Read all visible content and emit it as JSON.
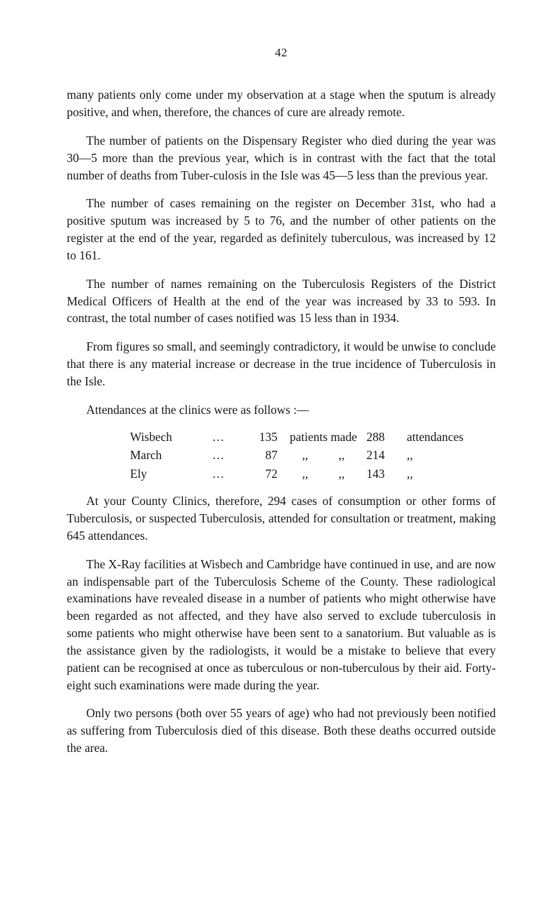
{
  "page_number": "42",
  "paragraphs": {
    "p1": "many patients only come under my observation at a stage when the sputum is already positive, and when, therefore, the chances of cure are already remote.",
    "p2": "The number of patients on the Dispensary Register who died during the year was 30—5 more than the previous year, which is in contrast with the fact that the total number of deaths from Tuber-culosis in the Isle was 45—5 less than the previous year.",
    "p3": "The number of cases remaining on the register on December 31st, who had a positive sputum was increased by 5 to 76, and the number of other patients on the register at the end of the year, regarded as definitely tuberculous, was increased by 12 to 161.",
    "p4": "The number of names remaining on the Tuberculosis Registers of the District Medical Officers of Health at the end of the year was increased by 33 to 593. In contrast, the total number of cases notified was 15 less than in 1934.",
    "p5": "From figures so small, and seemingly contradictory, it would be unwise to conclude that there is any material increase or decrease in the true incidence of Tuberculosis in the Isle.",
    "attend_intro": "Attendances at the clinics were as follows :—",
    "p6": "At your County Clinics, therefore, 294 cases of consumption or other forms of Tuberculosis, or suspected Tuberculosis, attended for consultation or treatment, making 645 attendances.",
    "p7": "The X-Ray facilities at Wisbech and Cambridge have continued in use, and are now an indispensable part of the Tuberculosis Scheme of the County. These radiological examinations have revealed disease in a number of patients who might otherwise have been regarded as not affected, and they have also served to exclude tuberculosis in some patients who might otherwise have been sent to a sanatorium. But valuable as is the assistance given by the radiologists, it would be a mistake to believe that every patient can be recognised at once as tuberculous or non-tuberculous by their aid. Forty-eight such examinations were made during the year.",
    "p8": "Only two persons (both over 55 years of age) who had not previously been notified as suffering from Tuberculosis died of this disease. Both these deaths occurred outside the area."
  },
  "attendance_table": {
    "rows": [
      {
        "place": "Wisbech",
        "dots": "…",
        "patients": "135",
        "mid": "patients made",
        "att": "288",
        "tail": "attendances"
      },
      {
        "place": "March",
        "dots": "…",
        "patients": "87",
        "mid": ",,",
        "ditto2": ",,",
        "att": "214",
        "tail": ",,"
      },
      {
        "place": "Ely",
        "dots": "…",
        "patients": "72",
        "mid": ",,",
        "ditto2": ",,",
        "att": "143",
        "tail": ",,"
      }
    ]
  }
}
